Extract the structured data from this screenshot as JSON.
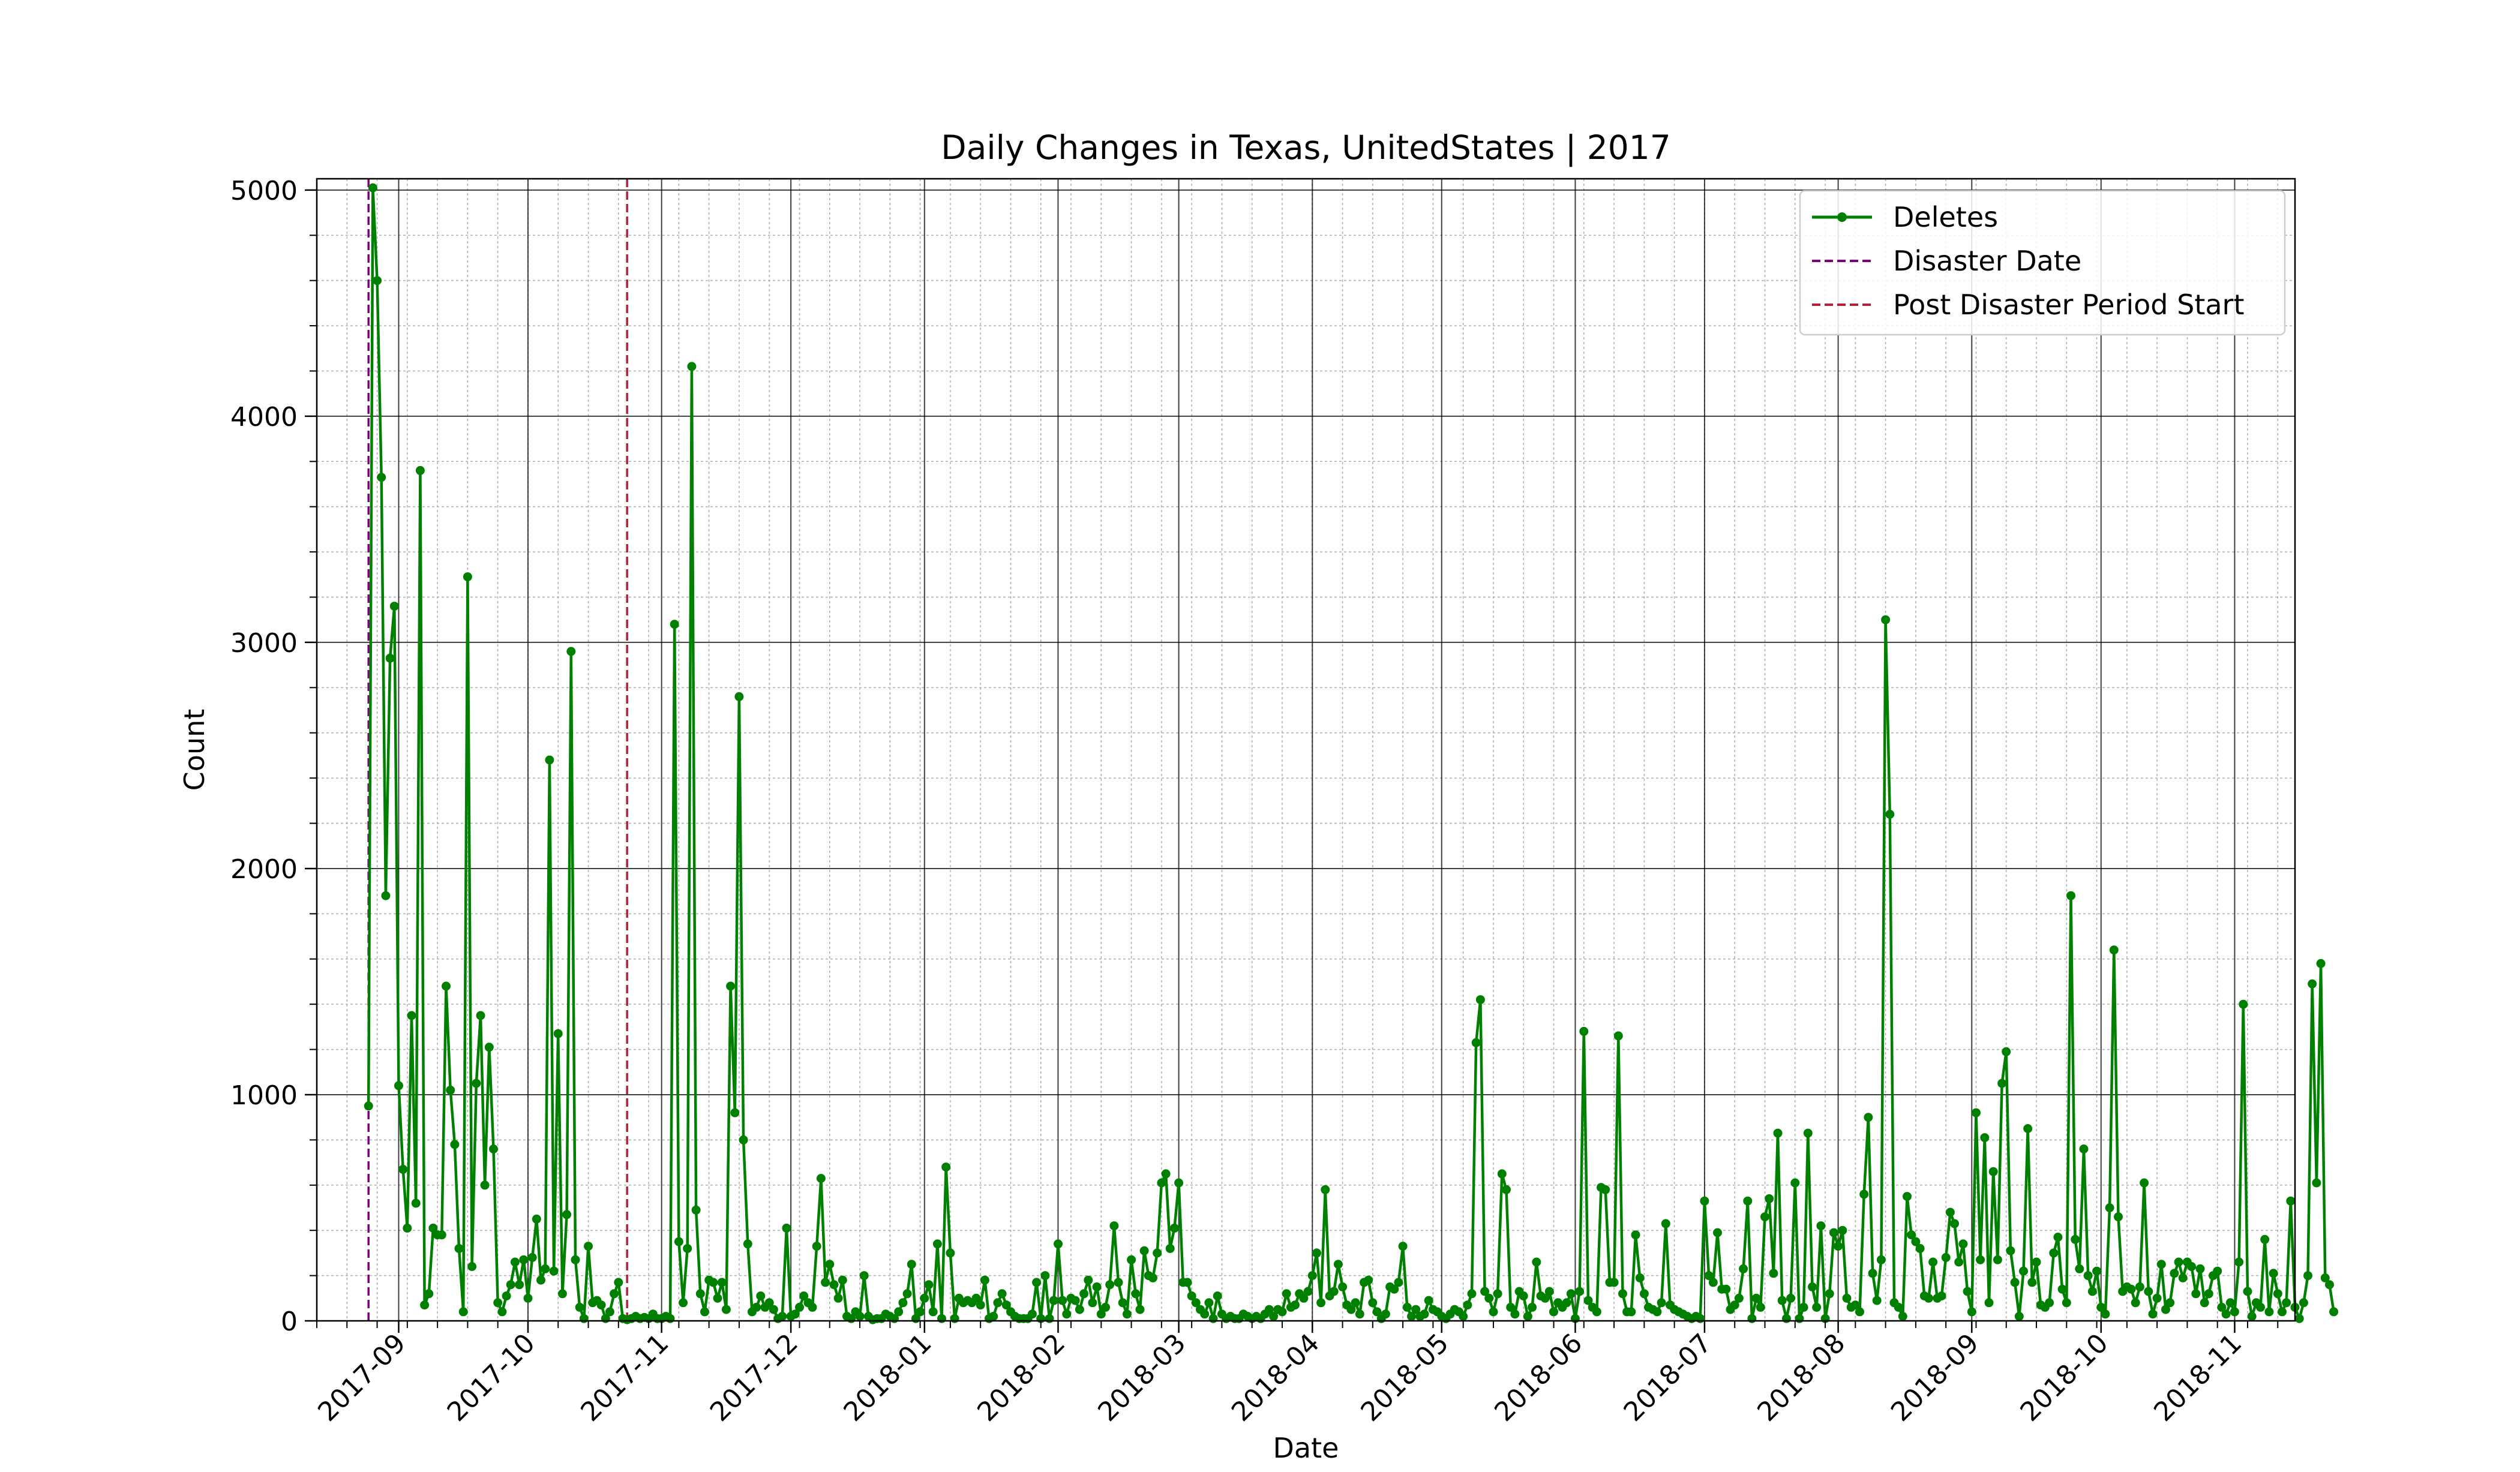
{
  "chart_data": {
    "type": "line",
    "title": "Daily Changes in Texas, UnitedStates | 2017",
    "xlabel": "Date",
    "ylabel": "Count",
    "xlim": [
      "2017-08-13",
      "2018-11-15"
    ],
    "ylim": [
      0,
      5050
    ],
    "grid": {
      "major": true,
      "minor": true
    },
    "legend_position": "top-right",
    "x_ticks": [
      "2017-09",
      "2017-10",
      "2017-11",
      "2017-12",
      "2018-01",
      "2018-02",
      "2018-03",
      "2018-04",
      "2018-05",
      "2018-06",
      "2018-07",
      "2018-08",
      "2018-09",
      "2018-10",
      "2018-11"
    ],
    "y_ticks": [
      0,
      1000,
      2000,
      3000,
      4000,
      5000
    ],
    "series": [
      {
        "name": "Deletes",
        "color": "#008000",
        "marker": "circle",
        "x_start": "2017-08-25",
        "values": [
          950,
          5010,
          4600,
          3730,
          1880,
          2930,
          3160,
          1040,
          670,
          410,
          1350,
          520,
          3760,
          70,
          120,
          410,
          380,
          380,
          1480,
          1020,
          780,
          320,
          40,
          3290,
          240,
          1050,
          1350,
          600,
          1210,
          760,
          80,
          40,
          110,
          160,
          260,
          160,
          270,
          100,
          280,
          450,
          180,
          230,
          2480,
          220,
          1270,
          120,
          470,
          2960,
          270,
          60,
          10,
          330,
          80,
          90,
          70,
          10,
          40,
          120,
          170,
          10,
          5,
          10,
          20,
          10,
          15,
          10,
          30,
          10,
          10,
          20,
          10,
          3080,
          350,
          80,
          320,
          4220,
          490,
          120,
          40,
          180,
          170,
          100,
          170,
          50,
          1480,
          920,
          2760,
          800,
          340,
          40,
          60,
          110,
          60,
          80,
          50,
          10,
          20,
          410,
          20,
          30,
          60,
          110,
          80,
          60,
          330,
          630,
          170,
          250,
          160,
          100,
          180,
          20,
          10,
          40,
          20,
          200,
          20,
          5,
          10,
          10,
          30,
          20,
          10,
          40,
          80,
          120,
          250,
          10,
          40,
          100,
          160,
          40,
          340,
          10,
          680,
          300,
          10,
          100,
          80,
          90,
          80,
          100,
          70,
          180,
          10,
          20,
          80,
          120,
          70,
          40,
          20,
          10,
          10,
          10,
          30,
          170,
          10,
          200,
          10,
          90,
          340,
          90,
          30,
          100,
          90,
          50,
          120,
          180,
          80,
          150,
          30,
          60,
          160,
          420,
          170,
          80,
          30,
          270,
          120,
          50,
          310,
          200,
          190,
          300,
          610,
          650,
          320,
          410,
          610,
          170,
          170,
          110,
          80,
          50,
          30,
          80,
          10,
          110,
          30,
          10,
          20,
          10,
          10,
          30,
          20,
          10,
          20,
          10,
          30,
          50,
          20,
          50,
          40,
          120,
          60,
          70,
          120,
          100,
          130,
          200,
          300,
          80,
          580,
          110,
          130,
          250,
          150,
          70,
          50,
          80,
          30,
          170,
          180,
          80,
          40,
          10,
          30,
          150,
          140,
          170,
          330,
          60,
          20,
          50,
          20,
          30,
          90,
          50,
          40,
          20,
          10,
          30,
          50,
          40,
          20,
          70,
          120,
          1230,
          1420,
          130,
          100,
          40,
          120,
          650,
          580,
          60,
          30,
          130,
          110,
          20,
          60,
          260,
          110,
          100,
          130,
          40,
          80,
          60,
          80,
          120,
          10,
          130,
          1280,
          90,
          60,
          40,
          590,
          580,
          170,
          170,
          1260,
          120,
          40,
          40,
          380,
          190,
          120,
          60,
          50,
          40,
          80,
          430,
          70,
          50,
          40,
          30,
          20,
          10,
          20,
          10,
          530,
          200,
          170,
          390,
          140,
          140,
          50,
          70,
          100,
          230,
          530,
          10,
          100,
          60,
          460,
          540,
          210,
          830,
          90,
          10,
          100,
          610,
          10,
          60,
          830,
          150,
          60,
          420,
          10,
          120,
          390,
          330,
          400,
          100,
          60,
          70,
          40,
          560,
          900,
          210,
          90,
          270,
          3100,
          2240,
          80,
          60,
          20,
          550,
          380,
          350,
          320,
          110,
          100,
          260,
          100,
          110,
          280,
          480,
          430,
          260,
          340,
          130,
          40,
          920,
          270,
          810,
          80,
          660,
          270,
          1050,
          1190,
          310,
          170,
          20,
          220,
          850,
          170,
          260,
          70,
          60,
          80,
          300,
          370,
          140,
          80,
          1880,
          360,
          230,
          760,
          200,
          130,
          220,
          60,
          30,
          500,
          1640,
          460,
          130,
          150,
          140,
          80,
          150,
          610,
          130,
          30,
          100,
          250,
          50,
          80,
          210,
          260,
          190,
          260,
          240,
          120,
          230,
          80,
          120,
          200,
          220,
          60,
          30,
          80,
          40,
          260,
          1400,
          130,
          20,
          80,
          60,
          360,
          40,
          210,
          120,
          40,
          80,
          530,
          60,
          10,
          80,
          200,
          1490,
          610,
          1580,
          190,
          160,
          40
        ]
      },
      {
        "name": "Disaster Date",
        "color": "#800080",
        "style": "dashed",
        "date": "2017-08-25"
      },
      {
        "name": "Post Disaster Period Start",
        "color": "#b22234",
        "style": "dashed",
        "date": "2017-10-24"
      }
    ]
  }
}
